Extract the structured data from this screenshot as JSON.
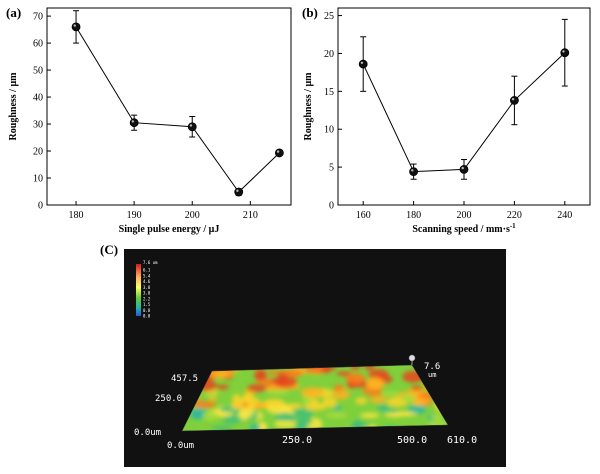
{
  "chart_data": [
    {
      "panel": "(a)",
      "type": "line",
      "xlabel": "Single pulse energy / μJ",
      "ylabel": "Roughness / μm",
      "xlim": [
        175,
        217
      ],
      "ylim": [
        0,
        73
      ],
      "xticks": [
        180,
        190,
        200,
        210
      ],
      "yticks": [
        0,
        10,
        20,
        30,
        40,
        50,
        60,
        70
      ],
      "series": [
        {
          "x": [
            180,
            190,
            200,
            208,
            215
          ],
          "y": [
            66,
            30.5,
            29,
            4.8,
            19.3
          ],
          "err": [
            6,
            2.8,
            3.8,
            1.2,
            0.8
          ]
        }
      ]
    },
    {
      "panel": "(b)",
      "type": "line",
      "xlabel": "Scanning speed / mm·s",
      "xlabel_sup": "-1",
      "ylabel": "Roughness / μm",
      "xlim": [
        150,
        250
      ],
      "ylim": [
        0,
        26
      ],
      "xticks": [
        160,
        180,
        200,
        220,
        240
      ],
      "yticks": [
        0,
        5,
        10,
        15,
        20,
        25
      ],
      "series": [
        {
          "x": [
            160,
            180,
            200,
            220,
            240
          ],
          "y": [
            18.6,
            4.4,
            4.7,
            13.8,
            20.1
          ],
          "err": [
            3.6,
            1.0,
            1.3,
            3.2,
            4.4
          ]
        }
      ]
    }
  ],
  "panel_c": {
    "letter": "(C)",
    "legend_top": "7.6 um",
    "legend_values": [
      "6.1",
      "5.4",
      "4.6",
      "3.8",
      "3.0",
      "2.2",
      "1.5",
      "0.8",
      "0.0"
    ],
    "z_top": "7.6",
    "z_unit": "um",
    "y_max": "457.5",
    "y_mid": "250.0",
    "y_zero": "0.0um",
    "x_zero": "0.0um",
    "x_mid": "250.0",
    "x_500": "500.0",
    "x_max": "610.0"
  }
}
